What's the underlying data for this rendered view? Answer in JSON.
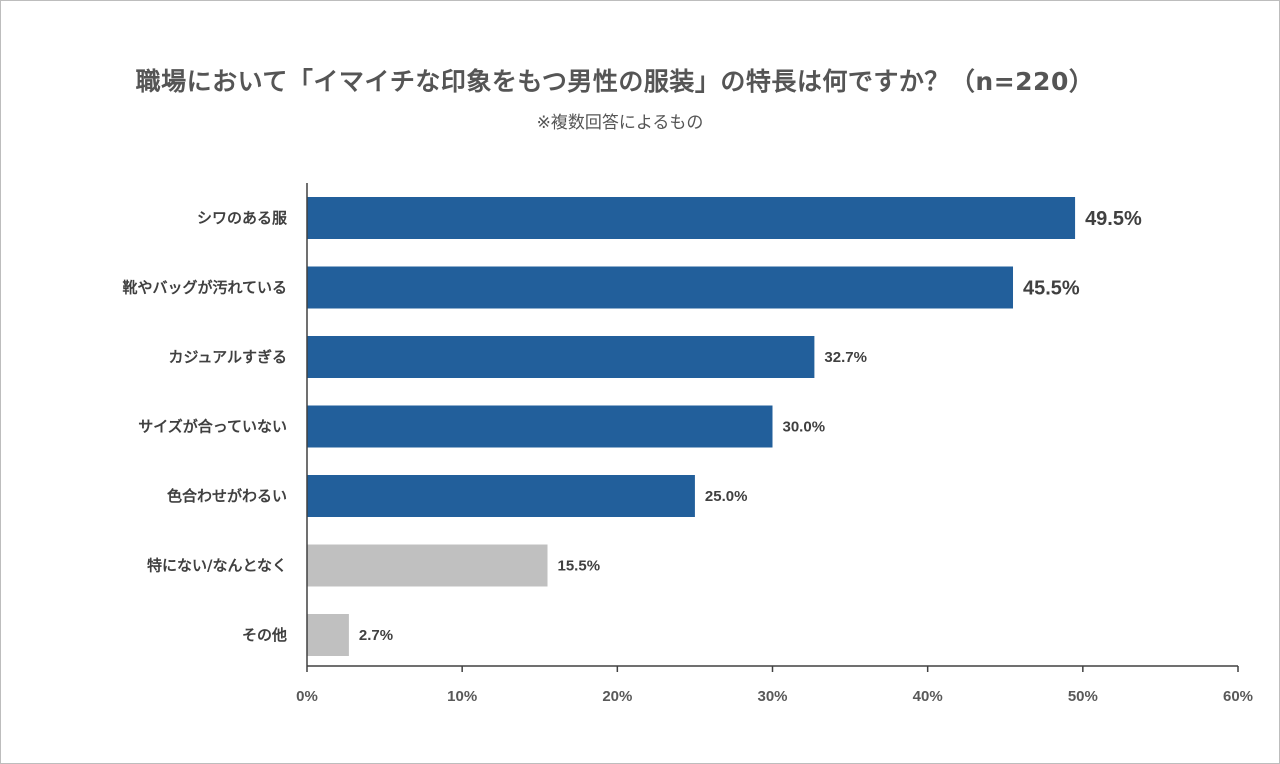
{
  "chart_data": {
    "type": "bar",
    "orientation": "horizontal",
    "title": "職場において「イマイチな印象をもつ男性の服装」の特長は何ですか？（n=220）",
    "subtitle": "※複数回答によるもの",
    "xlabel": "",
    "ylabel": "",
    "xlim": [
      0,
      60
    ],
    "x_ticks": [
      0,
      10,
      20,
      30,
      40,
      50,
      60
    ],
    "x_tick_labels": [
      "0%",
      "10%",
      "20%",
      "30%",
      "40%",
      "50%",
      "60%"
    ],
    "grid": false,
    "categories": [
      "シワのある服",
      "靴やバッグが汚れている",
      "カジュアルすぎる",
      "サイズが合っていない",
      "色合わせがわるい",
      "特にない/なんとなく",
      "その他"
    ],
    "values": [
      49.5,
      45.5,
      32.7,
      30.0,
      25.0,
      15.5,
      2.7
    ],
    "value_labels": [
      "49.5%",
      "45.5%",
      "32.7%",
      "30.0%",
      "25.0%",
      "15.5%",
      "2.7%"
    ],
    "bar_colors": [
      "#225f9b",
      "#225f9b",
      "#225f9b",
      "#225f9b",
      "#225f9b",
      "#c0c0c0",
      "#c0c0c0"
    ],
    "emphasized_labels": [
      true,
      true,
      false,
      false,
      false,
      false,
      false
    ]
  }
}
